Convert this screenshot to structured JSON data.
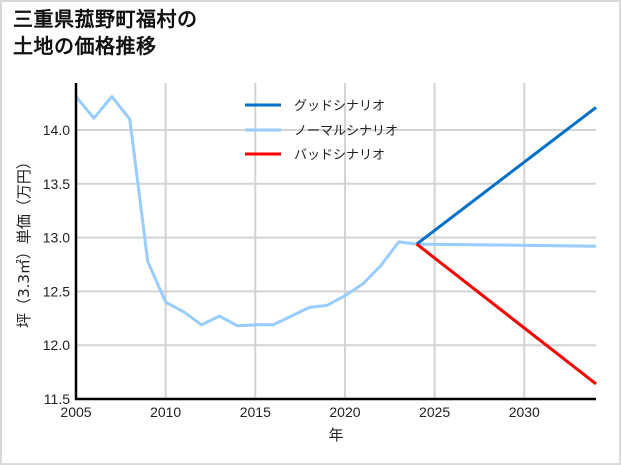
{
  "title": {
    "line1": "三重県菰野町福村の",
    "line2": "土地の価格推移"
  },
  "chart_data": {
    "type": "line",
    "title": "三重県菰野町福村の土地の価格推移",
    "xlabel": "年",
    "ylabel": "坪（3.3㎡）単価（万円）",
    "xlim": [
      2005,
      2034
    ],
    "ylim": [
      11.5,
      14.4
    ],
    "xticks": [
      2005,
      2010,
      2015,
      2020,
      2025,
      2030
    ],
    "xtick_labels": [
      "2005",
      "2010",
      "2015",
      "2020",
      "2025",
      "2030"
    ],
    "yticks": [
      11.5,
      12.0,
      12.5,
      13.0,
      13.5,
      14.0
    ],
    "ytick_labels": [
      "11.5",
      "12.0",
      "12.5",
      "13.0",
      "13.5",
      "14.0"
    ],
    "grid": true,
    "legend_position": "upper center",
    "series": [
      {
        "name": "グッドシナリオ",
        "color": "#0070c8",
        "x": [
          2024,
          2034
        ],
        "values": [
          12.94,
          14.21
        ]
      },
      {
        "name": "ノーマルシナリオ",
        "color": "#99ccff",
        "x": [
          2005,
          2006,
          2007,
          2008,
          2009,
          2010,
          2011,
          2012,
          2013,
          2014,
          2015,
          2016,
          2017,
          2018,
          2019,
          2020,
          2021,
          2022,
          2023,
          2024,
          2034
        ],
        "values": [
          14.31,
          14.11,
          14.31,
          14.1,
          12.78,
          12.4,
          12.31,
          12.19,
          12.27,
          12.18,
          12.19,
          12.19,
          12.27,
          12.35,
          12.37,
          12.46,
          12.57,
          12.74,
          12.96,
          12.94,
          12.92
        ]
      },
      {
        "name": "バッドシナリオ",
        "color": "#ff0000",
        "x": [
          2024,
          2034
        ],
        "values": [
          12.94,
          11.64
        ]
      }
    ]
  }
}
